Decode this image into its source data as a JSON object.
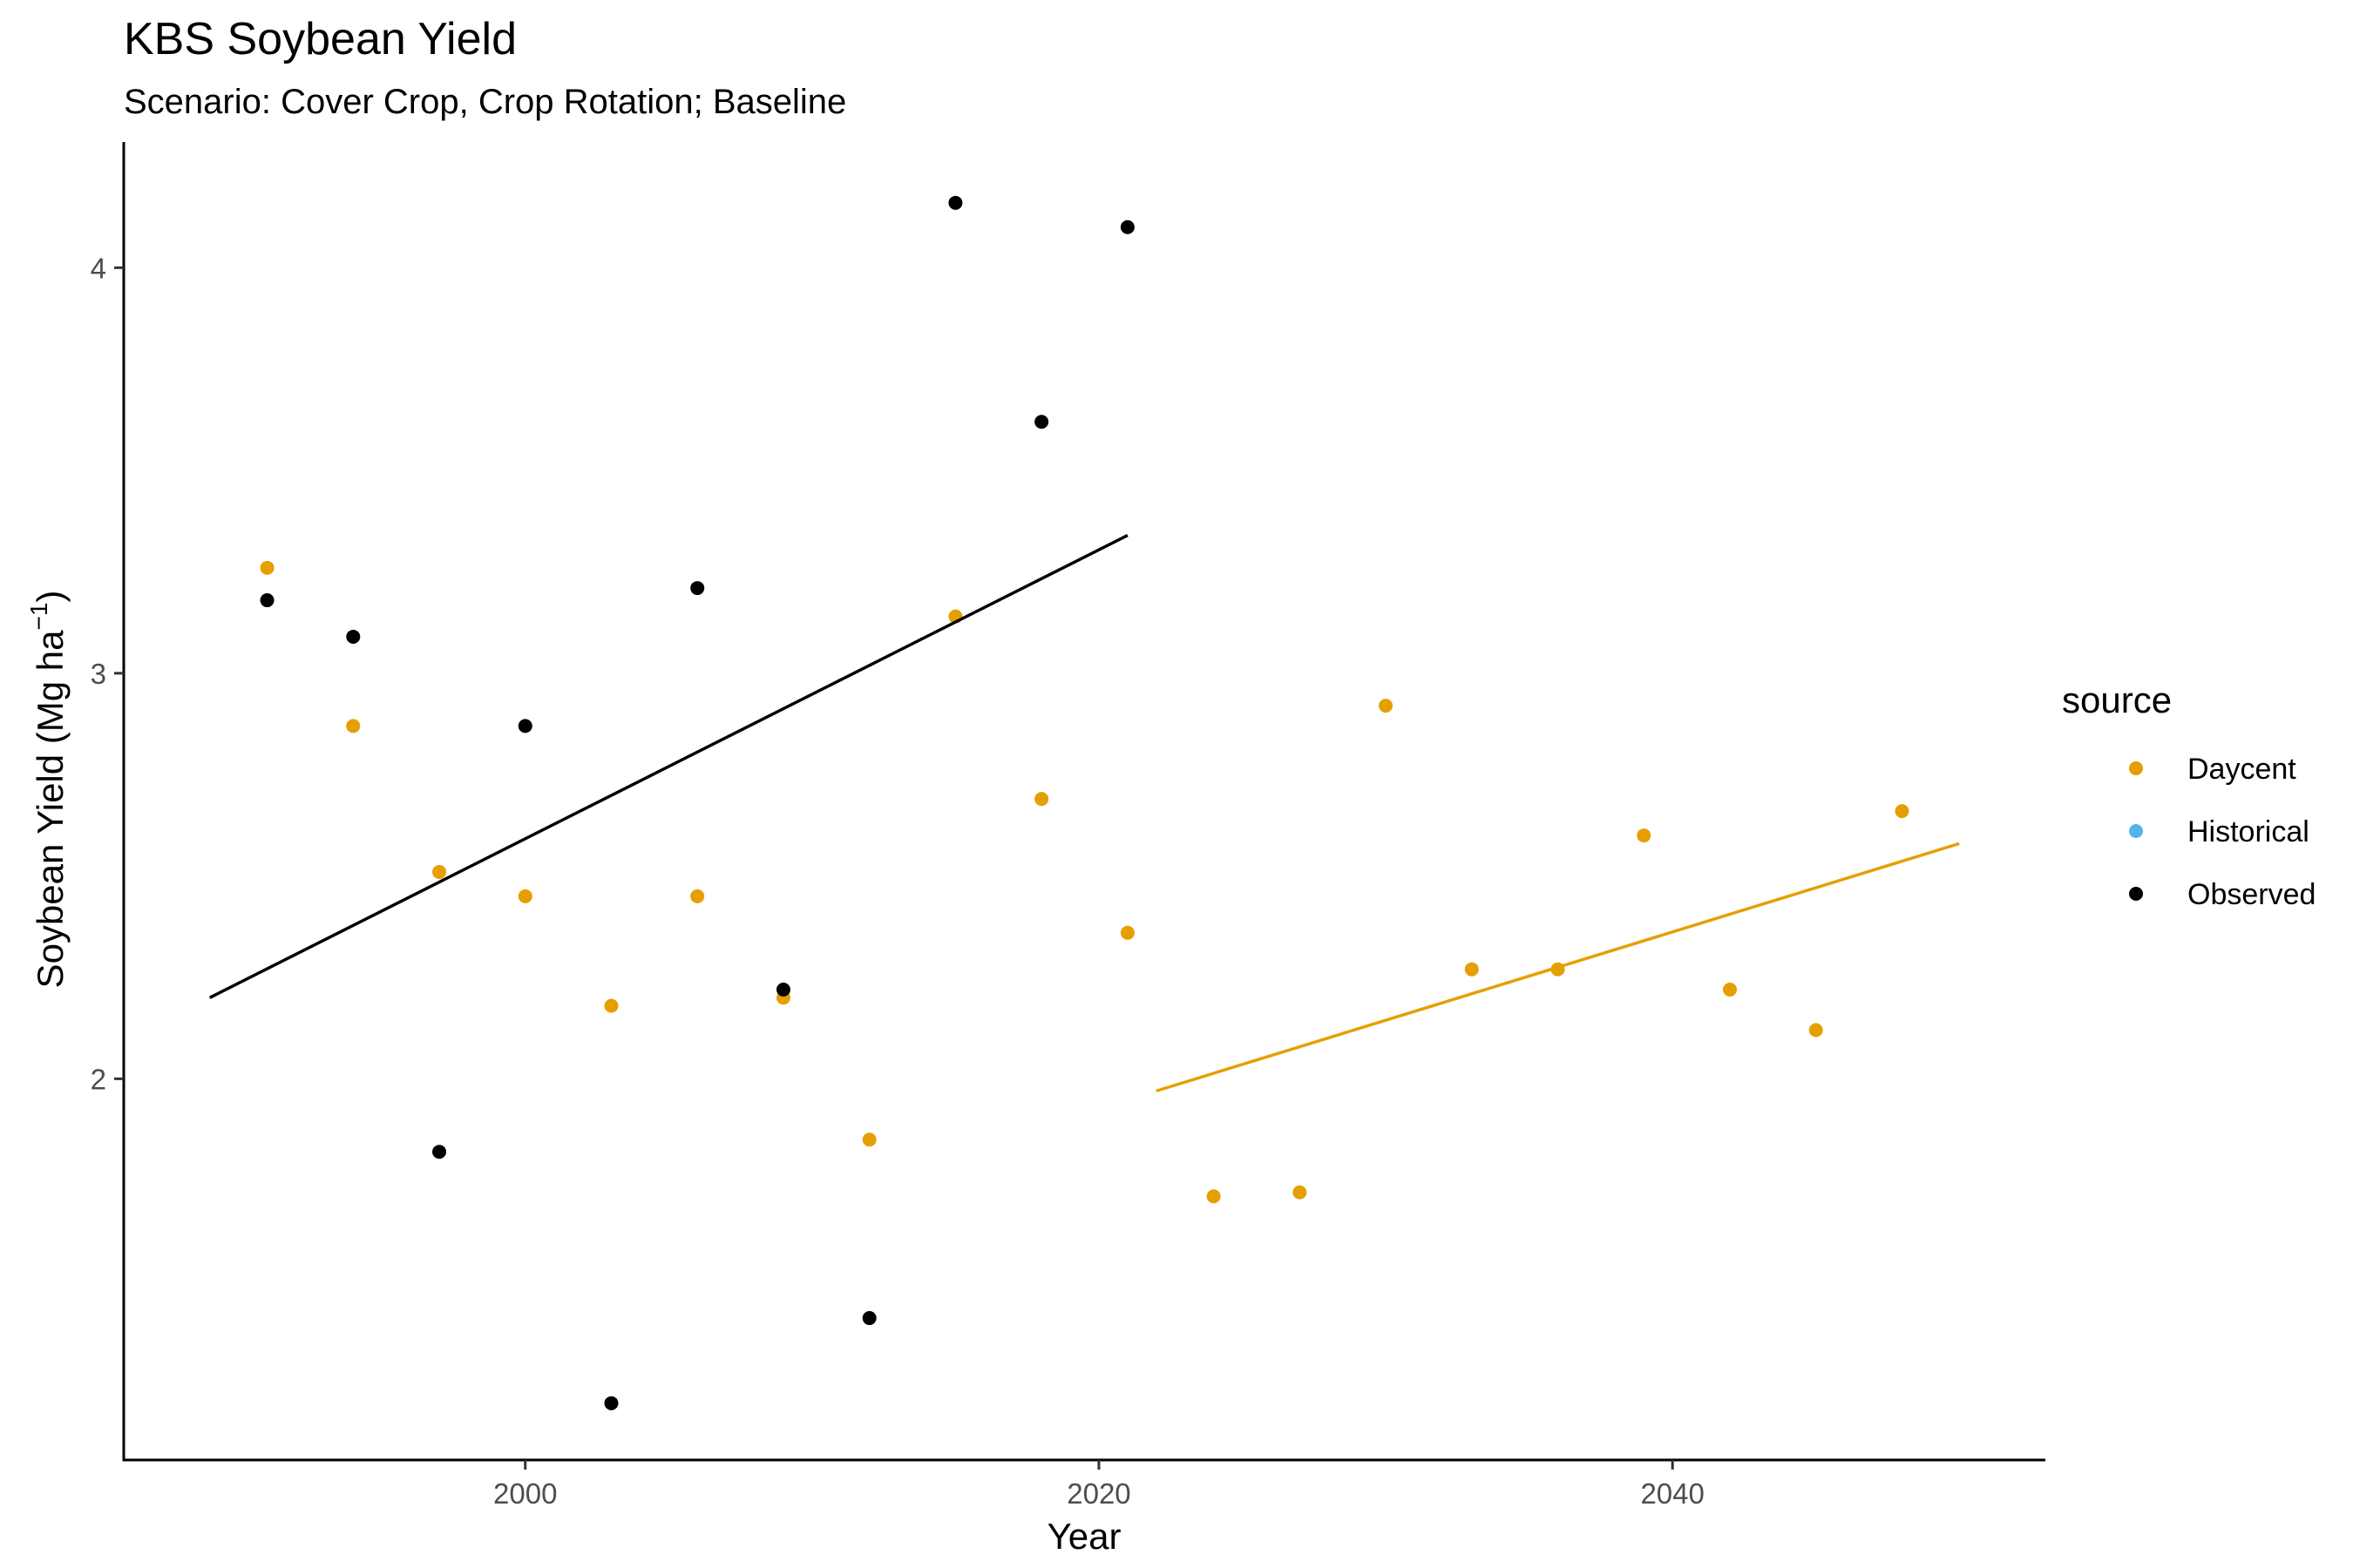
{
  "chart_data": {
    "type": "scatter",
    "title": "KBS Soybean Yield",
    "subtitle": "Scenario: Cover Crop, Crop Rotation; Baseline",
    "xlabel": "Year",
    "ylabel_main": "Soybean Yield (Mg ha",
    "ylabel_sup": "−1",
    "ylabel_close": ")",
    "xlim": [
      1986,
      2053
    ],
    "ylim": [
      1.06,
      4.31
    ],
    "x_ticks": [
      2000,
      2020,
      2040
    ],
    "x_tick_labels": [
      "2000",
      "2020",
      "2040"
    ],
    "y_ticks": [
      2,
      3,
      4
    ],
    "y_tick_labels": [
      "2",
      "3",
      "4"
    ],
    "grid": false,
    "legend": {
      "title": "source",
      "position": "right",
      "entries": [
        {
          "label": "Daycent",
          "color": "#E69F00"
        },
        {
          "label": "Historical",
          "color": "#56B4E9"
        },
        {
          "label": "Observed",
          "color": "#000000"
        }
      ]
    },
    "series": [
      {
        "name": "Observed",
        "color": "#000000",
        "points": [
          [
            1991,
            3.18
          ],
          [
            1994,
            3.09
          ],
          [
            1997,
            1.82
          ],
          [
            2000,
            2.87
          ],
          [
            2003,
            1.2
          ],
          [
            2006,
            3.21
          ],
          [
            2009,
            2.22
          ],
          [
            2012,
            1.41
          ],
          [
            2015,
            4.16
          ],
          [
            2018,
            3.62
          ],
          [
            2021,
            4.1
          ]
        ],
        "trend": [
          [
            1989,
            2.2
          ],
          [
            2021,
            3.34
          ]
        ]
      },
      {
        "name": "Daycent",
        "color": "#E69F00",
        "points": [
          [
            1991,
            3.26
          ],
          [
            1994,
            2.87
          ],
          [
            1997,
            2.51
          ],
          [
            2000,
            2.45
          ],
          [
            2003,
            2.18
          ],
          [
            2006,
            2.45
          ],
          [
            2009,
            2.2
          ],
          [
            2012,
            1.85
          ],
          [
            2015,
            3.14
          ],
          [
            2018,
            2.69
          ],
          [
            2021,
            2.36
          ],
          [
            2024,
            1.71
          ],
          [
            2027,
            1.72
          ],
          [
            2030,
            2.92
          ],
          [
            2033,
            2.27
          ],
          [
            2036,
            2.27
          ],
          [
            2039,
            2.6
          ],
          [
            2042,
            2.22
          ],
          [
            2045,
            2.12
          ],
          [
            2048,
            2.66
          ]
        ],
        "trend": [
          [
            2022,
            1.97
          ],
          [
            2050,
            2.58
          ]
        ]
      },
      {
        "name": "Historical",
        "color": "#56B4E9",
        "points": [],
        "trend": []
      }
    ]
  }
}
